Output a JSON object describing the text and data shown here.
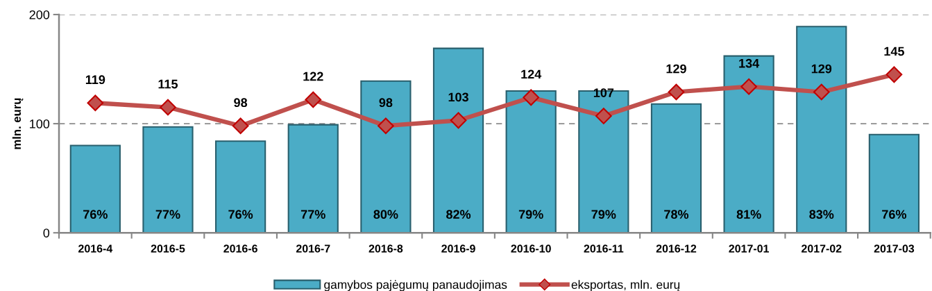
{
  "chart_data": {
    "type": "bar",
    "ylabel": "mln. eurų",
    "categories": [
      "2016-4",
      "2016-5",
      "2016-6",
      "2016-7",
      "2016-8",
      "2016-9",
      "2016-10",
      "2016-11",
      "2016-12",
      "2017-01",
      "2017-02",
      "2017-03"
    ],
    "ylim": [
      0,
      200
    ],
    "yticks": [
      0,
      100,
      200
    ],
    "grid": "y",
    "legend": "bottom",
    "series": [
      {
        "name": "gamybos pajėgumų panaudojimas",
        "color": "#4bacc6",
        "values": [
          80,
          97,
          84,
          99,
          139,
          169,
          130,
          130,
          118,
          162,
          189,
          90
        ]
      },
      {
        "name": "eksportas, mln. eurų",
        "type": "line",
        "color": "#c0504d",
        "marker": "diamond",
        "line_style": "solid",
        "data_labels": true,
        "values": [
          119,
          115,
          98,
          122,
          98,
          103,
          124,
          107,
          129,
          134,
          129,
          145
        ]
      }
    ],
    "annotations": [
      "76%",
      "77%",
      "76%",
      "77%",
      "80%",
      "82%",
      "79%",
      "79%",
      "78%",
      "81%",
      "83%",
      "76%"
    ]
  }
}
